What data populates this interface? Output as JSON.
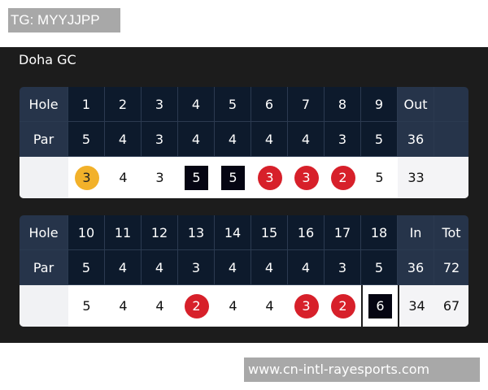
{
  "watermark_top": "TG: MYYJJPP",
  "watermark_bottom": "www.cn-intl-rayesports.com",
  "course": "Doha GC",
  "colors": {
    "eagle": "#f2b12a",
    "birdie": "#d7202a",
    "bogey": "#050512"
  },
  "cards": [
    {
      "hole_label": "Hole",
      "par_label": "Par",
      "holes": [
        "1",
        "2",
        "3",
        "4",
        "5",
        "6",
        "7",
        "8",
        "9",
        "Out",
        ""
      ],
      "pars": [
        "5",
        "4",
        "3",
        "4",
        "4",
        "4",
        "4",
        "3",
        "5",
        "36",
        ""
      ],
      "scores": [
        {
          "v": "3",
          "mark": "eagle"
        },
        {
          "v": "4",
          "mark": ""
        },
        {
          "v": "3",
          "mark": ""
        },
        {
          "v": "5",
          "mark": "bogey"
        },
        {
          "v": "5",
          "mark": "bogey"
        },
        {
          "v": "3",
          "mark": "birdie"
        },
        {
          "v": "3",
          "mark": "birdie"
        },
        {
          "v": "2",
          "mark": "birdie"
        },
        {
          "v": "5",
          "mark": ""
        },
        {
          "v": "33",
          "mark": ""
        },
        {
          "v": "",
          "mark": ""
        }
      ]
    },
    {
      "hole_label": "Hole",
      "par_label": "Par",
      "holes": [
        "10",
        "11",
        "12",
        "13",
        "14",
        "15",
        "16",
        "17",
        "18",
        "In",
        "Tot"
      ],
      "pars": [
        "5",
        "4",
        "4",
        "3",
        "4",
        "4",
        "4",
        "3",
        "5",
        "36",
        "72"
      ],
      "scores": [
        {
          "v": "5",
          "mark": ""
        },
        {
          "v": "4",
          "mark": ""
        },
        {
          "v": "4",
          "mark": ""
        },
        {
          "v": "2",
          "mark": "birdie"
        },
        {
          "v": "4",
          "mark": ""
        },
        {
          "v": "4",
          "mark": ""
        },
        {
          "v": "3",
          "mark": "birdie"
        },
        {
          "v": "2",
          "mark": "birdie"
        },
        {
          "v": "6",
          "mark": "bogey"
        },
        {
          "v": "34",
          "mark": ""
        },
        {
          "v": "67",
          "mark": ""
        }
      ]
    }
  ]
}
